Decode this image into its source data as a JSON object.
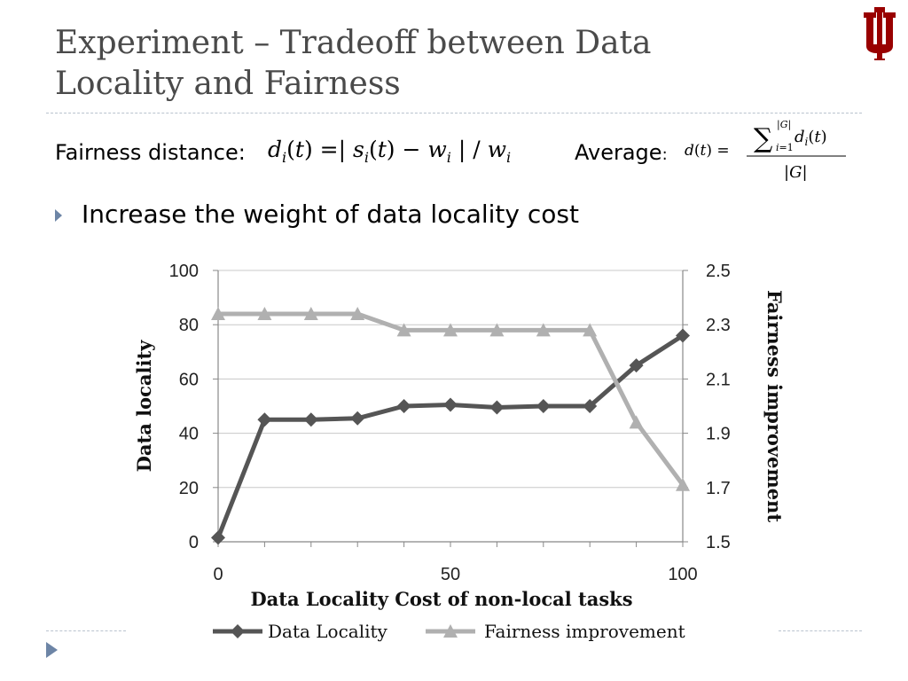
{
  "slide": {
    "title": "Experiment – Tradeoff between Data Locality and Fairness",
    "fairness_label": "Fairness distance:",
    "average_label": "Average",
    "bullet": "Increase the weight of data locality cost"
  },
  "colors": {
    "title": "#4a4a4a",
    "accent": "#6d85a6",
    "logo": "#990000",
    "series_dark": "#555555",
    "series_light": "#b0b0b0"
  },
  "chart_data": {
    "type": "line",
    "xlabel": "Data Locality Cost of non-local tasks",
    "ylabel_left": "Data locality",
    "ylabel_right": "Fairness improvement",
    "x_ticks": [
      "0",
      "50",
      "100"
    ],
    "xlim": [
      0,
      100
    ],
    "ylim_left": [
      0,
      100
    ],
    "y_ticks_left": [
      "0",
      "20",
      "40",
      "60",
      "80",
      "100"
    ],
    "ylim_right": [
      1.5,
      2.5
    ],
    "y_ticks_right": [
      "1.5",
      "1.7",
      "1.9",
      "2.1",
      "2.3",
      "2.5"
    ],
    "grid": true,
    "legend_position": "bottom",
    "series": [
      {
        "name": "Data Locality",
        "axis": "left",
        "color": "#555555",
        "marker": "diamond",
        "x": [
          0,
          10,
          20,
          30,
          40,
          50,
          60,
          70,
          80,
          90,
          100
        ],
        "values": [
          1.5,
          45,
          45,
          45.5,
          50,
          50.5,
          49.5,
          50,
          50,
          65,
          76
        ]
      },
      {
        "name": "Fairness improvement",
        "axis": "right",
        "color": "#b0b0b0",
        "marker": "triangle",
        "x": [
          0,
          10,
          20,
          30,
          40,
          50,
          60,
          70,
          80,
          90,
          100
        ],
        "values": [
          2.34,
          2.34,
          2.34,
          2.34,
          2.28,
          2.28,
          2.28,
          2.28,
          2.28,
          1.94,
          1.71
        ]
      }
    ]
  }
}
